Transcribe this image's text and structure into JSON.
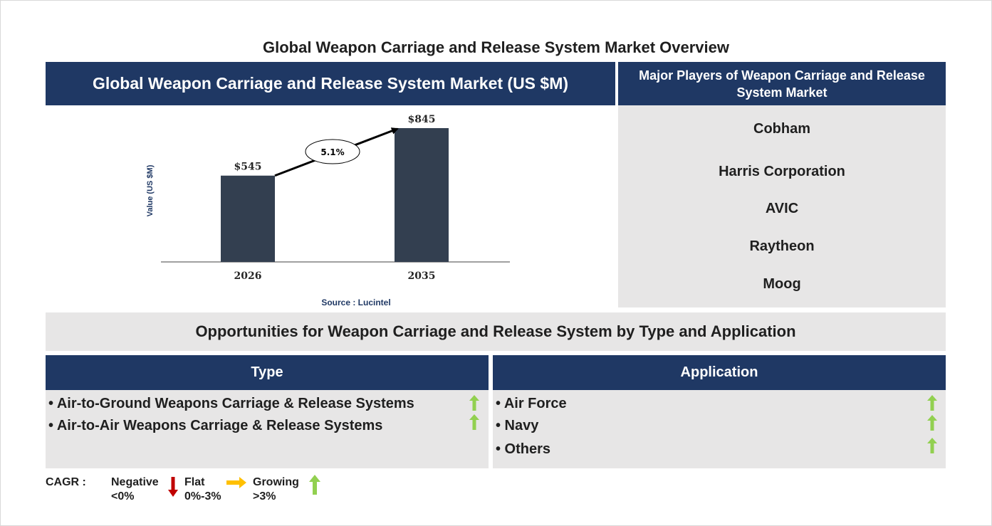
{
  "title": "Global Weapon Carriage and Release System Market Overview",
  "chart_panel": {
    "header": "Global Weapon Carriage and Release System Market (US $M)"
  },
  "chart_data": {
    "type": "bar",
    "categories": [
      "2026",
      "2035"
    ],
    "values": [
      545,
      845
    ],
    "value_labels": [
      "$545",
      "$845"
    ],
    "ylabel": "Value (US $M)",
    "source": "Source : Lucintel",
    "cagr_label": "5.1%",
    "ylim": [
      0,
      900
    ],
    "bar_color": "#333f50"
  },
  "players": {
    "header": "Major Players of Weapon Carriage and Release System Market",
    "items": [
      "Cobham",
      "Harris Corporation",
      "AVIC",
      "Raytheon",
      "Moog"
    ]
  },
  "opportunities": {
    "title": "Opportunities for Weapon Carriage and Release System by Type and Application",
    "type": {
      "header": "Type",
      "items": [
        {
          "label": "• Air-to-Ground Weapons Carriage & Release Systems",
          "trend": "growing"
        },
        {
          "label": "• Air-to-Air Weapons Carriage & Release Systems",
          "trend": "growing"
        }
      ]
    },
    "application": {
      "header": "Application",
      "items": [
        {
          "label": "• Air Force",
          "trend": "growing"
        },
        {
          "label": "• Navy",
          "trend": "growing"
        },
        {
          "label": "• Others",
          "trend": "growing"
        }
      ]
    }
  },
  "legend": {
    "label": "CAGR  :",
    "negative": {
      "name": "Negative",
      "range": "<0%",
      "icon": "down-arrow-icon",
      "color": "#c00000"
    },
    "flat": {
      "name": "Flat",
      "range": "0%-3%",
      "icon": "right-arrow-icon",
      "color": "#ffc000"
    },
    "growing": {
      "name": "Growing",
      "range": ">3%",
      "icon": "up-arrow-icon",
      "color": "#92d050"
    }
  },
  "colors": {
    "navy": "#1f3864",
    "panel_grey": "#e7e6e6",
    "growing_arrow": "#92d050"
  }
}
